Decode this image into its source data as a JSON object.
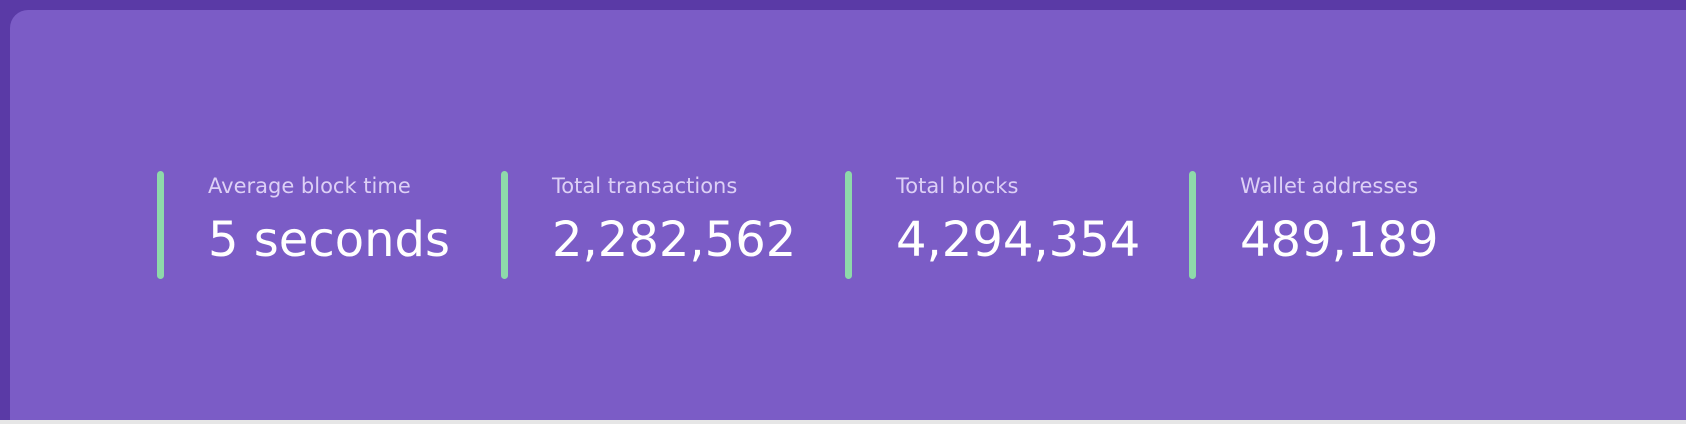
{
  "colors": {
    "frame": "#5a3aa6",
    "panel": "#7b5cc6",
    "accent_bar": "#8ed9aa",
    "label": "#ddd0f6",
    "value": "#ffffff"
  },
  "stats": [
    {
      "label": "Average block time",
      "value": "5 seconds"
    },
    {
      "label": "Total transactions",
      "value": "2,282,562"
    },
    {
      "label": "Total blocks",
      "value": "4,294,354"
    },
    {
      "label": "Wallet addresses",
      "value": "489,189"
    }
  ]
}
